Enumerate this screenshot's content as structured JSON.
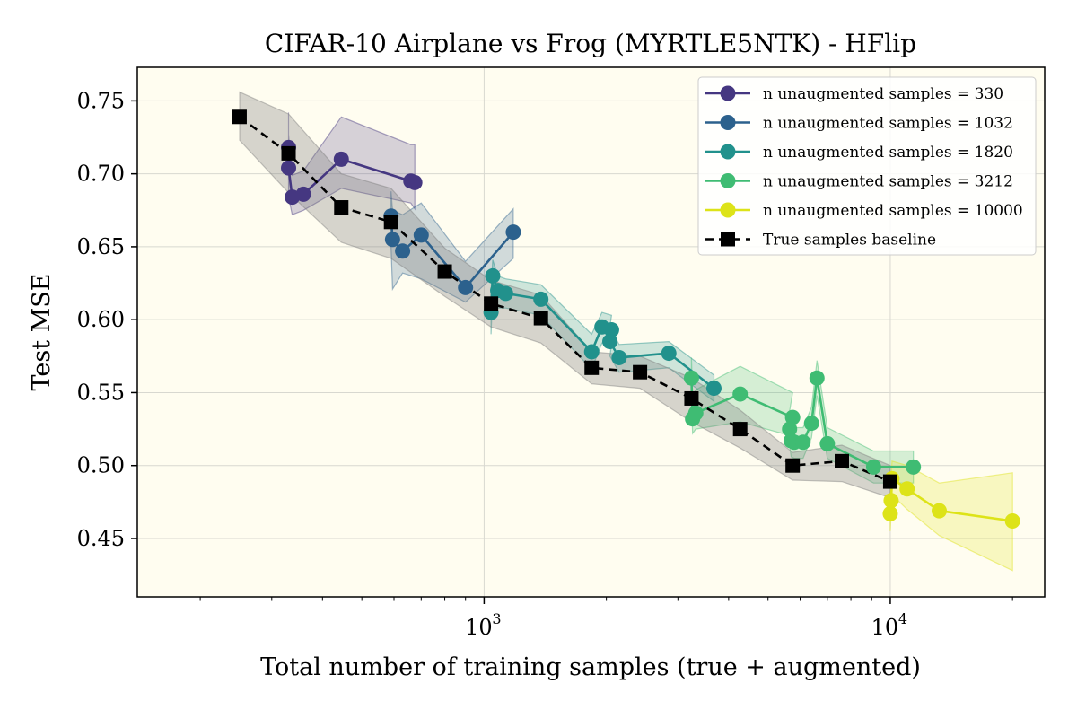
{
  "chart_data": {
    "type": "line",
    "title": "CIFAR-10 Airplane vs Frog (MYRTLE5NTK) - HFlip",
    "xlabel": "Total number of training samples (true + augmented)",
    "ylabel": "Test MSE",
    "xscale": "log",
    "xlim": [
      140,
      24000
    ],
    "ylim": [
      0.41,
      0.773
    ],
    "xticks": [
      {
        "value": 1000,
        "base": "10",
        "exp": "3"
      },
      {
        "value": 10000,
        "base": "10",
        "exp": "4"
      }
    ],
    "yticks": [
      {
        "value": 0.45,
        "label": "0.45"
      },
      {
        "value": 0.5,
        "label": "0.50"
      },
      {
        "value": 0.55,
        "label": "0.55"
      },
      {
        "value": 0.6,
        "label": "0.60"
      },
      {
        "value": 0.65,
        "label": "0.65"
      },
      {
        "value": 0.7,
        "label": "0.70"
      },
      {
        "value": 0.75,
        "label": "0.75"
      }
    ],
    "grid": true,
    "legend_position": "top-right",
    "background": "#fffdf0",
    "series": [
      {
        "name": "n unaugmented samples = 330",
        "color": "#453781",
        "marker": "circle",
        "points": [
          [
            330,
            0.718
          ],
          [
            330,
            0.704
          ],
          [
            337,
            0.684
          ],
          [
            359,
            0.686
          ],
          [
            445,
            0.71
          ],
          [
            660,
            0.695
          ],
          [
            675,
            0.694
          ]
        ],
        "band_upper": [
          [
            330,
            0.742
          ],
          [
            330,
            0.727
          ],
          [
            337,
            0.699
          ],
          [
            359,
            0.702
          ],
          [
            445,
            0.739
          ],
          [
            660,
            0.72
          ],
          [
            675,
            0.72
          ]
        ],
        "band_lower": [
          [
            330,
            0.69
          ],
          [
            330,
            0.684
          ],
          [
            337,
            0.672
          ],
          [
            359,
            0.675
          ],
          [
            445,
            0.69
          ],
          [
            660,
            0.68
          ],
          [
            675,
            0.676
          ]
        ]
      },
      {
        "name": "n unaugmented samples = 1032",
        "color": "#2c618d",
        "marker": "circle",
        "points": [
          [
            590,
            0.671
          ],
          [
            595,
            0.655
          ],
          [
            630,
            0.647
          ],
          [
            700,
            0.658
          ],
          [
            900,
            0.622
          ],
          [
            1180,
            0.66
          ]
        ],
        "band_upper": [
          [
            590,
            0.688
          ],
          [
            595,
            0.675
          ],
          [
            630,
            0.672
          ],
          [
            700,
            0.68
          ],
          [
            900,
            0.64
          ],
          [
            1180,
            0.676
          ]
        ],
        "band_lower": [
          [
            590,
            0.65
          ],
          [
            595,
            0.621
          ],
          [
            630,
            0.632
          ],
          [
            700,
            0.628
          ],
          [
            900,
            0.612
          ],
          [
            1180,
            0.642
          ]
        ]
      },
      {
        "name": "n unaugmented samples = 1820",
        "color": "#21918c",
        "marker": "circle",
        "points": [
          [
            1040,
            0.605
          ],
          [
            1050,
            0.63
          ],
          [
            1080,
            0.62
          ],
          [
            1130,
            0.618
          ],
          [
            1380,
            0.614
          ],
          [
            1840,
            0.578
          ],
          [
            1950,
            0.595
          ],
          [
            2060,
            0.593
          ],
          [
            2040,
            0.585
          ],
          [
            2150,
            0.574
          ],
          [
            2850,
            0.577
          ],
          [
            3680,
            0.553
          ]
        ],
        "band_upper": [
          [
            1040,
            0.62
          ],
          [
            1050,
            0.641
          ],
          [
            1080,
            0.63
          ],
          [
            1130,
            0.628
          ],
          [
            1380,
            0.624
          ],
          [
            1840,
            0.59
          ],
          [
            1950,
            0.605
          ],
          [
            2060,
            0.603
          ],
          [
            2040,
            0.595
          ],
          [
            2150,
            0.583
          ],
          [
            2850,
            0.585
          ],
          [
            3680,
            0.562
          ]
        ],
        "band_lower": [
          [
            1040,
            0.59
          ],
          [
            1050,
            0.619
          ],
          [
            1080,
            0.608
          ],
          [
            1130,
            0.608
          ],
          [
            1380,
            0.603
          ],
          [
            1840,
            0.566
          ],
          [
            1950,
            0.584
          ],
          [
            2060,
            0.583
          ],
          [
            2040,
            0.575
          ],
          [
            2150,
            0.564
          ],
          [
            2850,
            0.567
          ],
          [
            3680,
            0.544
          ]
        ]
      },
      {
        "name": "n unaugmented samples = 3212",
        "color": "#3fbc73",
        "marker": "circle",
        "points": [
          [
            3240,
            0.56
          ],
          [
            3260,
            0.532
          ],
          [
            3320,
            0.536
          ],
          [
            4270,
            0.549
          ],
          [
            5750,
            0.533
          ],
          [
            5650,
            0.525
          ],
          [
            5700,
            0.517
          ],
          [
            5800,
            0.516
          ],
          [
            6100,
            0.516
          ],
          [
            6400,
            0.529
          ],
          [
            6600,
            0.56
          ],
          [
            7000,
            0.515
          ],
          [
            9100,
            0.499
          ],
          [
            11400,
            0.499
          ]
        ],
        "band_upper": [
          [
            3240,
            0.574
          ],
          [
            3260,
            0.548
          ],
          [
            3320,
            0.552
          ],
          [
            4270,
            0.568
          ],
          [
            5750,
            0.55
          ],
          [
            5650,
            0.537
          ],
          [
            5700,
            0.528
          ],
          [
            5800,
            0.526
          ],
          [
            6100,
            0.526
          ],
          [
            6400,
            0.54
          ],
          [
            6600,
            0.572
          ],
          [
            7000,
            0.526
          ],
          [
            9100,
            0.51
          ],
          [
            11400,
            0.51
          ]
        ],
        "band_lower": [
          [
            3240,
            0.545
          ],
          [
            3260,
            0.522
          ],
          [
            3320,
            0.525
          ],
          [
            4270,
            0.53
          ],
          [
            5750,
            0.52
          ],
          [
            5650,
            0.514
          ],
          [
            5700,
            0.506
          ],
          [
            5800,
            0.505
          ],
          [
            6100,
            0.505
          ],
          [
            6400,
            0.519
          ],
          [
            6600,
            0.548
          ],
          [
            7000,
            0.505
          ],
          [
            9100,
            0.488
          ],
          [
            11400,
            0.488
          ]
        ]
      },
      {
        "name": "n unaugmented samples = 10000",
        "color": "#dde318",
        "marker": "circle",
        "points": [
          [
            10000,
            0.467
          ],
          [
            10050,
            0.476
          ],
          [
            10100,
            0.491
          ],
          [
            11000,
            0.484
          ],
          [
            13200,
            0.469
          ],
          [
            20000,
            0.462
          ]
        ],
        "band_upper": [
          [
            10000,
            0.48
          ],
          [
            10050,
            0.49
          ],
          [
            10100,
            0.503
          ],
          [
            11000,
            0.5
          ],
          [
            13200,
            0.488
          ],
          [
            20000,
            0.495
          ]
        ],
        "band_lower": [
          [
            10000,
            0.455
          ],
          [
            10050,
            0.465
          ],
          [
            10100,
            0.48
          ],
          [
            11000,
            0.47
          ],
          [
            13200,
            0.452
          ],
          [
            20000,
            0.428
          ]
        ]
      },
      {
        "name": "True samples baseline",
        "color": "#000000",
        "marker": "square",
        "dashed": true,
        "points": [
          [
            250,
            0.739
          ],
          [
            330,
            0.714
          ],
          [
            445,
            0.677
          ],
          [
            590,
            0.667
          ],
          [
            800,
            0.633
          ],
          [
            1040,
            0.611
          ],
          [
            1380,
            0.601
          ],
          [
            1840,
            0.567
          ],
          [
            2420,
            0.564
          ],
          [
            3240,
            0.546
          ],
          [
            4270,
            0.525
          ],
          [
            5750,
            0.5
          ],
          [
            7600,
            0.503
          ],
          [
            10000,
            0.489
          ]
        ],
        "band_upper": [
          [
            250,
            0.756
          ],
          [
            330,
            0.741
          ],
          [
            445,
            0.7
          ],
          [
            590,
            0.69
          ],
          [
            800,
            0.649
          ],
          [
            1040,
            0.627
          ],
          [
            1380,
            0.617
          ],
          [
            1840,
            0.578
          ],
          [
            2420,
            0.575
          ],
          [
            3240,
            0.56
          ],
          [
            4270,
            0.538
          ],
          [
            5750,
            0.509
          ],
          [
            7600,
            0.514
          ],
          [
            10000,
            0.5
          ]
        ],
        "band_lower": [
          [
            250,
            0.723
          ],
          [
            330,
            0.687
          ],
          [
            445,
            0.653
          ],
          [
            590,
            0.642
          ],
          [
            800,
            0.616
          ],
          [
            1040,
            0.595
          ],
          [
            1380,
            0.584
          ],
          [
            1840,
            0.556
          ],
          [
            2420,
            0.553
          ],
          [
            3240,
            0.53
          ],
          [
            4270,
            0.512
          ],
          [
            5750,
            0.49
          ],
          [
            7600,
            0.489
          ],
          [
            10000,
            0.478
          ]
        ]
      }
    ]
  }
}
